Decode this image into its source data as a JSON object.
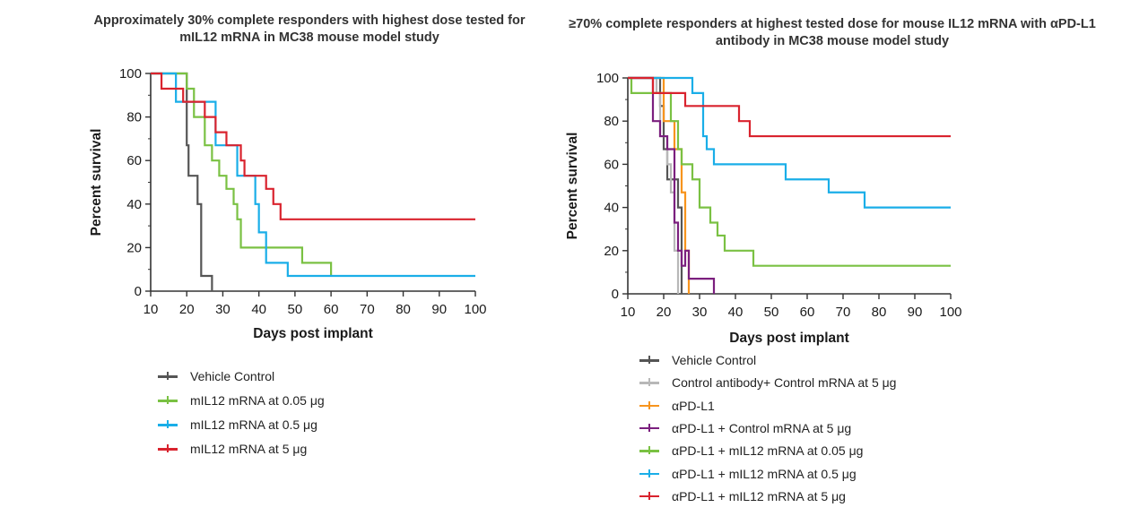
{
  "chart_data": [
    {
      "type": "line",
      "title": "Approximately 30% complete responders with highest dose tested for mIL12 mRNA in MC38 mouse model study",
      "xlabel": "Days post implant",
      "ylabel": "Percent survival",
      "xlim": [
        10,
        100
      ],
      "ylim": [
        0,
        100
      ],
      "xticks": [
        "10",
        "20",
        "30",
        "40",
        "50",
        "60",
        "70",
        "80",
        "90",
        "100"
      ],
      "yticks": [
        "0",
        "20",
        "40",
        "60",
        "80",
        "100"
      ],
      "series": [
        {
          "name": "Vehicle Control",
          "color": "#555555",
          "x": [
            10,
            20,
            20.5,
            21,
            23,
            24,
            25,
            27
          ],
          "y": [
            100,
            67,
            53,
            53,
            40,
            7,
            7,
            0
          ]
        },
        {
          "name": "mIL12 mRNA at 0.05 μg",
          "color": "#7ac143",
          "x": [
            10,
            20,
            22,
            25,
            27,
            29,
            31,
            33,
            34,
            35,
            44,
            52,
            60
          ],
          "y": [
            100,
            93,
            80,
            67,
            60,
            53,
            47,
            40,
            33,
            20,
            20,
            13,
            7
          ]
        },
        {
          "name": "mIL12 mRNA at 0.5 μg",
          "color": "#1aaee8",
          "x": [
            10,
            17,
            27,
            28,
            34,
            38,
            39,
            40,
            42,
            48,
            100
          ],
          "y": [
            100,
            87,
            87,
            67,
            53,
            53,
            40,
            27,
            13,
            7,
            7
          ]
        },
        {
          "name": "mIL12 mRNA at 5 μg",
          "color": "#d9232e",
          "x": [
            10,
            13,
            19,
            25,
            28,
            31,
            35,
            36,
            38,
            42,
            44,
            46,
            100
          ],
          "y": [
            100,
            93,
            87,
            80,
            73,
            67,
            60,
            53,
            53,
            47,
            40,
            33,
            33
          ]
        }
      ]
    },
    {
      "type": "line",
      "title": "≥70% complete responders at highest tested dose for mouse IL12 mRNA with αPD-L1 antibody in MC38 mouse model study",
      "xlabel": "Days post implant",
      "ylabel": "Percent survival",
      "xlim": [
        10,
        100
      ],
      "ylim": [
        0,
        100
      ],
      "xticks": [
        "10",
        "20",
        "30",
        "40",
        "50",
        "60",
        "70",
        "80",
        "90",
        "100"
      ],
      "yticks": [
        "0",
        "20",
        "40",
        "60",
        "80",
        "100"
      ],
      "series": [
        {
          "name": "Vehicle Control",
          "color": "#555555",
          "x": [
            10,
            19,
            20,
            21,
            22,
            24,
            25
          ],
          "y": [
            100,
            87,
            67,
            53,
            53,
            40,
            0
          ]
        },
        {
          "name": "Control antibody+ Control mRNA at 5 μg",
          "color": "#b8b8b8",
          "x": [
            10,
            18,
            19,
            21,
            22,
            23,
            24
          ],
          "y": [
            100,
            93,
            73,
            60,
            47,
            20,
            0
          ]
        },
        {
          "name": "αPD-L1",
          "color": "#f7941d",
          "x": [
            10,
            20,
            23,
            25,
            26,
            27
          ],
          "y": [
            100,
            80,
            67,
            47,
            20,
            0
          ]
        },
        {
          "name": "αPD-L1 + Control mRNA at 5 μg",
          "color": "#7b1f7e",
          "x": [
            10,
            17,
            19,
            21,
            23,
            24,
            25,
            26,
            27,
            34
          ],
          "y": [
            100,
            80,
            73,
            67,
            33,
            20,
            13,
            20,
            7,
            0
          ]
        },
        {
          "name": "αPD-L1 + mIL12 mRNA at 0.05 μg",
          "color": "#7ac143",
          "x": [
            10,
            11,
            22,
            24,
            25,
            28,
            30,
            33,
            35,
            37,
            40,
            45,
            100
          ],
          "y": [
            100,
            93,
            80,
            67,
            60,
            53,
            40,
            33,
            27,
            20,
            20,
            13,
            13
          ]
        },
        {
          "name": "αPD-L1 + mIL12 mRNA at 0.5 μg",
          "color": "#1aaee8",
          "x": [
            10,
            28,
            31,
            32,
            34,
            54,
            66,
            76,
            100
          ],
          "y": [
            100,
            93,
            73,
            67,
            60,
            53,
            47,
            40,
            40
          ]
        },
        {
          "name": "αPD-L1 + mIL12 mRNA at 5 μg",
          "color": "#d9232e",
          "x": [
            10,
            15,
            17,
            18,
            26,
            41,
            44,
            46,
            100
          ],
          "y": [
            100,
            100,
            93,
            93,
            87,
            80,
            73,
            73,
            73
          ]
        }
      ]
    }
  ]
}
